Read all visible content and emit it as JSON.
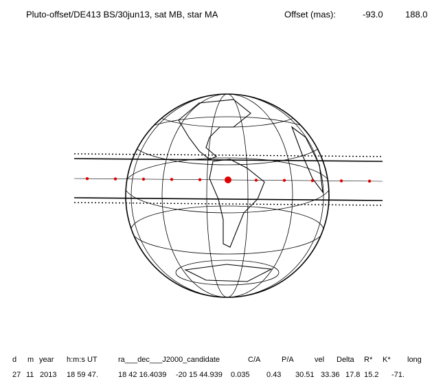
{
  "header": {
    "title": "Pluto-offset/DE413 BS/30jun13, sat MB, star MA",
    "offset_label": "Offset (mas):",
    "offset_ra": "-93.0",
    "offset_dec": "188.0"
  },
  "table": {
    "headers": [
      "d",
      "m",
      "year",
      "h:m:s UT",
      "ra___dec___J2000_candidate",
      "C/A",
      "P/A",
      "vel",
      "Delta",
      "R*",
      "K*",
      "long"
    ],
    "values": [
      "27",
      "11",
      "2013",
      "18 59 47.",
      "18 42 16.4039",
      "-20 15 44.939",
      "0.035",
      "0.43",
      "30.51",
      "33.36",
      "17.8",
      "15.2",
      "-71."
    ]
  }
}
